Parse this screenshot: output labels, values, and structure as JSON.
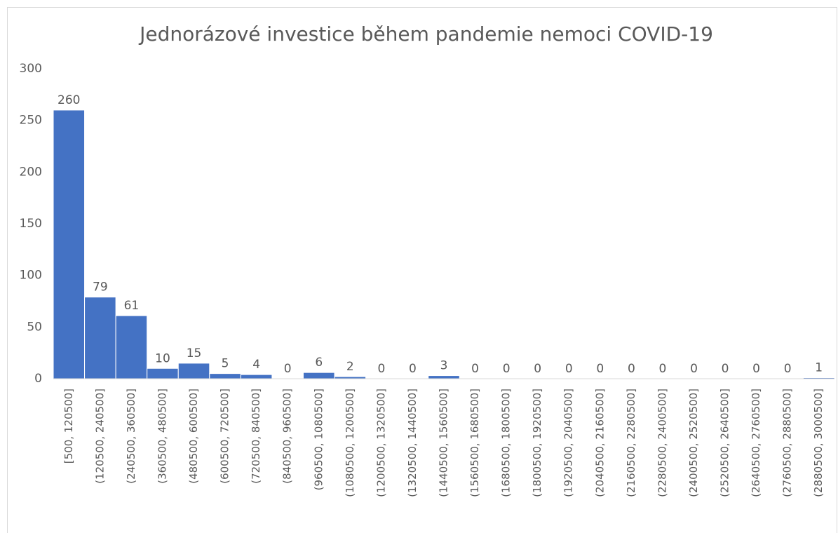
{
  "chart_data": {
    "type": "bar",
    "title": "Jednorázové investice během pandemie nemoci COVID-19",
    "categories": [
      "[500, 120500]",
      "(120500, 240500]",
      "(240500, 360500]",
      "(360500, 480500]",
      "(480500, 600500]",
      "(600500, 720500]",
      "(720500, 840500]",
      "(840500, 960500]",
      "(960500, 1080500]",
      "(1080500, 1200500]",
      "(1200500, 1320500]",
      "(1320500, 1440500]",
      "(1440500, 1560500]",
      "(1560500, 1680500]",
      "(1680500, 1800500]",
      "(1800500, 1920500]",
      "(1920500, 2040500]",
      "(2040500, 2160500]",
      "(2160500, 2280500]",
      "(2280500, 2400500]",
      "(2400500, 2520500]",
      "(2520500, 2640500]",
      "(2640500, 2760500]",
      "(2760500, 2880500]",
      "(2880500, 3000500]"
    ],
    "values": [
      260,
      79,
      61,
      10,
      15,
      5,
      4,
      0,
      6,
      2,
      0,
      0,
      3,
      0,
      0,
      0,
      0,
      0,
      0,
      0,
      0,
      0,
      0,
      0,
      1
    ],
    "color": "#4472c4",
    "ylim": [
      0,
      300
    ],
    "yticks": [
      0,
      50,
      100,
      150,
      200,
      250,
      300
    ],
    "grid": false
  }
}
